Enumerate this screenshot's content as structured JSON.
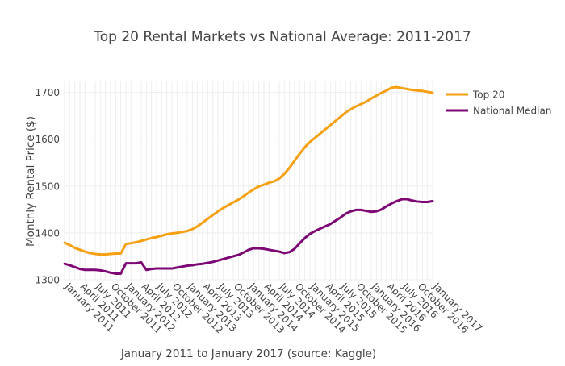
{
  "chart_data": {
    "type": "line",
    "title": "Top 20 Rental Markets vs National Average: 2011-2017",
    "xlabel": "January 2011 to January 2017 (source: Kaggle)",
    "ylabel": "Monthly Rental Price ($)",
    "ylim": [
      1300,
      1725
    ],
    "yticks": [
      1300,
      1400,
      1500,
      1600,
      1700
    ],
    "x": [
      "2011-01",
      "2011-02",
      "2011-03",
      "2011-04",
      "2011-05",
      "2011-06",
      "2011-07",
      "2011-08",
      "2011-09",
      "2011-10",
      "2011-11",
      "2011-12",
      "2012-01",
      "2012-02",
      "2012-03",
      "2012-04",
      "2012-05",
      "2012-06",
      "2012-07",
      "2012-08",
      "2012-09",
      "2012-10",
      "2012-11",
      "2012-12",
      "2013-01",
      "2013-02",
      "2013-03",
      "2013-04",
      "2013-05",
      "2013-06",
      "2013-07",
      "2013-08",
      "2013-09",
      "2013-10",
      "2013-11",
      "2013-12",
      "2014-01",
      "2014-02",
      "2014-03",
      "2014-04",
      "2014-05",
      "2014-06",
      "2014-07",
      "2014-08",
      "2014-09",
      "2014-10",
      "2014-11",
      "2014-12",
      "2015-01",
      "2015-02",
      "2015-03",
      "2015-04",
      "2015-05",
      "2015-06",
      "2015-07",
      "2015-08",
      "2015-09",
      "2015-10",
      "2015-11",
      "2015-12",
      "2016-01",
      "2016-02",
      "2016-03",
      "2016-04",
      "2016-05",
      "2016-06",
      "2016-07",
      "2016-08",
      "2016-09",
      "2016-10",
      "2016-11",
      "2016-12",
      "2017-01"
    ],
    "xtick_labels": [
      "January 2011",
      "April 2011",
      "July 2011",
      "October 2011",
      "January 2012",
      "April 2012",
      "July 2012",
      "October 2012",
      "January 2013",
      "April 2013",
      "July 2013",
      "October 2013",
      "January 2014",
      "April 2014",
      "July 2014",
      "October 2014",
      "January 2015",
      "April 2015",
      "July 2015",
      "October 2015",
      "January 2016",
      "April 2016",
      "July 2016",
      "October 2016",
      "January 2017"
    ],
    "grid": true,
    "legend_position": "top-right",
    "series": [
      {
        "name": "Top 20",
        "color": "#f5a011",
        "values": [
          1379,
          1374,
          1368,
          1364,
          1360,
          1357,
          1355,
          1354,
          1354,
          1355,
          1356,
          1356,
          1376,
          1378,
          1380,
          1383,
          1386,
          1389,
          1391,
          1394,
          1397,
          1399,
          1400,
          1402,
          1404,
          1408,
          1414,
          1422,
          1430,
          1438,
          1446,
          1453,
          1459,
          1465,
          1471,
          1478,
          1486,
          1493,
          1499,
          1503,
          1507,
          1510,
          1516,
          1526,
          1539,
          1554,
          1569,
          1583,
          1594,
          1603,
          1612,
          1621,
          1630,
          1639,
          1648,
          1657,
          1664,
          1670,
          1675,
          1680,
          1687,
          1693,
          1699,
          1704,
          1710,
          1711,
          1709,
          1707,
          1705,
          1704,
          1703,
          1701,
          1699
        ]
      },
      {
        "name": "National Median",
        "color": "#7d0875",
        "values": [
          1334,
          1331,
          1327,
          1323,
          1321,
          1321,
          1321,
          1320,
          1318,
          1315,
          1313,
          1313,
          1335,
          1335,
          1335,
          1337,
          1321,
          1323,
          1324,
          1324,
          1324,
          1324,
          1326,
          1328,
          1330,
          1331,
          1333,
          1334,
          1336,
          1338,
          1341,
          1344,
          1347,
          1350,
          1353,
          1358,
          1364,
          1367,
          1367,
          1366,
          1364,
          1362,
          1360,
          1357,
          1359,
          1366,
          1378,
          1389,
          1398,
          1404,
          1409,
          1414,
          1419,
          1426,
          1433,
          1441,
          1446,
          1449,
          1449,
          1447,
          1445,
          1446,
          1450,
          1457,
          1463,
          1468,
          1472,
          1472,
          1469,
          1467,
          1466,
          1466,
          1468
        ]
      }
    ]
  }
}
